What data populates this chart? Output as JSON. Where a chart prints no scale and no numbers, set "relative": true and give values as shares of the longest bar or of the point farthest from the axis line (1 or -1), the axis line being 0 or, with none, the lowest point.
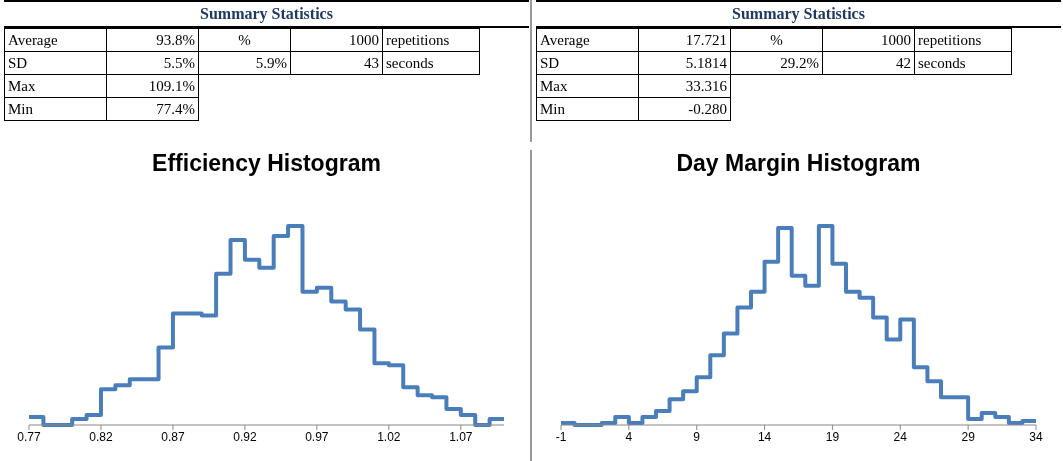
{
  "chart_data": [
    {
      "type": "other",
      "title": "Summary Statistics",
      "annotations": [
        "Average",
        "93.8%",
        "%",
        "1000",
        "repetitions",
        "SD",
        "5.5%",
        "5.9%",
        "43",
        "seconds",
        "Max",
        "109.1%",
        "Min",
        "77.4%"
      ]
    },
    {
      "type": "other",
      "title": "Summary Statistics",
      "annotations": [
        "Average",
        "17.721",
        "%",
        "1000",
        "repetitions",
        "SD",
        "5.1814",
        "29.2%",
        "42",
        "seconds",
        "Max",
        "33.316",
        "Min",
        "-0.280"
      ]
    },
    {
      "type": "step",
      "title": "Efficiency Histogram",
      "relative": true,
      "color": "#4a7ebb",
      "xlim": [
        0.77,
        1.1
      ],
      "xticks": [
        0.77,
        0.82,
        0.87,
        0.92,
        0.97,
        1.02,
        1.07
      ],
      "x": [
        0.77,
        0.78,
        0.79,
        0.8,
        0.81,
        0.82,
        0.83,
        0.84,
        0.85,
        0.86,
        0.87,
        0.88,
        0.89,
        0.9,
        0.91,
        0.92,
        0.93,
        0.94,
        0.95,
        0.96,
        0.97,
        0.98,
        0.99,
        1.0,
        1.01,
        1.02,
        1.03,
        1.04,
        1.05,
        1.06,
        1.07,
        1.08,
        1.09,
        1.1
      ],
      "values": [
        0.04,
        0,
        0,
        0.03,
        0.05,
        0.18,
        0.2,
        0.23,
        0.23,
        0.39,
        0.56,
        0.56,
        0.55,
        0.76,
        0.93,
        0.83,
        0.79,
        0.95,
        1,
        0.67,
        0.69,
        0.62,
        0.58,
        0.48,
        0.31,
        0.3,
        0.19,
        0.15,
        0.14,
        0.08,
        0.05,
        0,
        0.03,
        0.03
      ]
    },
    {
      "type": "step",
      "title": "Day Margin Histogram",
      "relative": true,
      "color": "#4a7ebb",
      "xlim": [
        -1,
        34
      ],
      "xticks": [
        -1,
        4,
        9,
        14,
        19,
        24,
        29,
        34
      ],
      "x": [
        -1,
        0,
        1,
        2,
        3,
        4,
        5,
        6,
        7,
        8,
        9,
        10,
        11,
        12,
        13,
        14,
        15,
        16,
        17,
        18,
        19,
        20,
        21,
        22,
        23,
        24,
        25,
        26,
        27,
        28,
        29,
        30,
        31,
        32,
        33,
        34
      ],
      "values": [
        0.01,
        0,
        0,
        0.01,
        0.04,
        0.01,
        0.04,
        0.07,
        0.13,
        0.17,
        0.24,
        0.35,
        0.46,
        0.59,
        0.67,
        0.82,
        0.99,
        0.75,
        0.7,
        1,
        0.81,
        0.67,
        0.64,
        0.54,
        0.43,
        0.53,
        0.29,
        0.22,
        0.14,
        0.14,
        0.03,
        0.06,
        0.04,
        0.01,
        0.02,
        0.02
      ]
    }
  ]
}
